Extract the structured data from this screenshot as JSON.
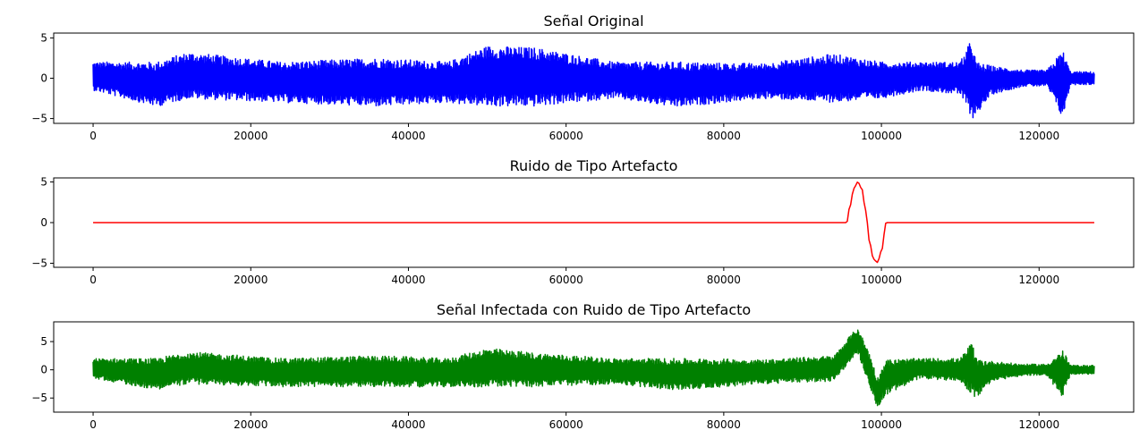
{
  "chart_data": [
    {
      "type": "line",
      "title": "Señal Original",
      "xlabel": "",
      "ylabel": "",
      "xlim": [
        -5000,
        132000
      ],
      "ylim": [
        -5.6,
        5.6
      ],
      "xticks": [
        0,
        20000,
        40000,
        60000,
        80000,
        100000,
        120000
      ],
      "yticks": [
        -5,
        0,
        5
      ],
      "grid": false,
      "series": [
        {
          "color": "#0000ff",
          "x_range": [
            0,
            127000
          ],
          "envelope": {
            "x": [
              0,
              8000,
              12000,
              24000,
              36000,
              45000,
              50000,
              56000,
              66000,
              74000,
              85000,
              94000,
              100000,
              105000,
              110000,
              111500,
              112000,
              114000,
              118000,
              121000,
              123000,
              124000,
              127000
            ],
            "upper": [
              2.0,
              2.0,
              3.2,
              2.0,
              2.5,
              2.0,
              4.0,
              3.8,
              2.0,
              2.0,
              1.8,
              3.0,
              2.0,
              2.0,
              2.0,
              5.0,
              2.0,
              1.5,
              1.0,
              1.0,
              3.5,
              0.8,
              0.8
            ],
            "lower": [
              -1.5,
              -3.5,
              -2.5,
              -3.0,
              -3.5,
              -3.0,
              -3.5,
              -3.5,
              -2.5,
              -3.6,
              -2.5,
              -3.0,
              -2.5,
              -1.5,
              -2.0,
              -5.0,
              -4.5,
              -2.0,
              -1.0,
              -1.0,
              -5.0,
              -0.8,
              -0.8
            ]
          }
        }
      ]
    },
    {
      "type": "line",
      "title": "Ruido de Tipo Artefacto",
      "xlabel": "",
      "ylabel": "",
      "xlim": [
        -5000,
        132000
      ],
      "ylim": [
        -5.5,
        5.5
      ],
      "xticks": [
        0,
        20000,
        40000,
        60000,
        80000,
        100000,
        120000
      ],
      "yticks": [
        -5,
        0,
        5
      ],
      "grid": false,
      "series": [
        {
          "color": "#ff0000",
          "x": [
            0,
            95600,
            96000,
            96500,
            97000,
            97500,
            98000,
            98200,
            98500,
            99000,
            99500,
            100000,
            100600,
            101000,
            127000
          ],
          "y": [
            0,
            0,
            2.0,
            4.2,
            5.0,
            4.2,
            1.5,
            0,
            -2.5,
            -4.5,
            -4.9,
            -3.5,
            0,
            0,
            0
          ]
        }
      ]
    },
    {
      "type": "line",
      "title": "Señal Infectada con Ruido de Tipo Artefacto",
      "xlabel": "",
      "ylabel": "",
      "xlim": [
        -5000,
        132000
      ],
      "ylim": [
        -7.5,
        8.5
      ],
      "xticks": [
        0,
        20000,
        40000,
        60000,
        80000,
        100000,
        120000
      ],
      "yticks": [
        -5,
        0,
        5
      ],
      "grid": false,
      "series": [
        {
          "color": "#008000",
          "x_range": [
            0,
            127000
          ],
          "envelope": {
            "x": [
              0,
              8000,
              12000,
              24000,
              36000,
              45000,
              50000,
              56000,
              66000,
              74000,
              85000,
              94000,
              96000,
              97000,
              98500,
              99500,
              100500,
              105000,
              110000,
              111500,
              112000,
              114000,
              118000,
              121000,
              123000,
              124000,
              127000
            ],
            "upper": [
              2.0,
              2.0,
              3.2,
              2.0,
              2.5,
              2.0,
              3.8,
              3.0,
              2.0,
              2.0,
              1.8,
              2.5,
              6.0,
              7.5,
              3.0,
              -1.5,
              1.8,
              2.0,
              2.0,
              5.0,
              2.0,
              1.5,
              1.0,
              1.0,
              3.5,
              0.8,
              0.8
            ],
            "lower": [
              -1.5,
              -3.5,
              -2.5,
              -3.0,
              -3.0,
              -3.0,
              -3.0,
              -3.0,
              -2.5,
              -3.6,
              -2.5,
              -2.0,
              1.5,
              3.0,
              -3.0,
              -6.8,
              -4.5,
              -1.5,
              -2.0,
              -4.5,
              -5.0,
              -2.0,
              -1.0,
              -1.0,
              -5.0,
              -0.8,
              -0.8
            ]
          }
        }
      ]
    }
  ]
}
